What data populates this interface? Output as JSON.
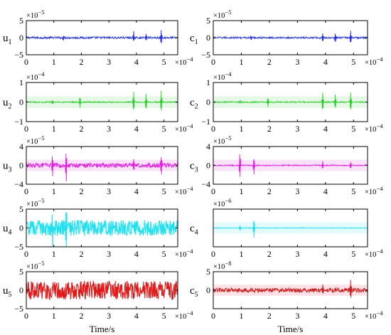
{
  "chart_data": [
    {
      "type": "line",
      "panel": "u1",
      "ylabel": {
        "base": "u",
        "sub": "1"
      },
      "color": "#1f2fd8",
      "xlim": [
        0,
        5.5
      ],
      "xticks": [
        0,
        1,
        2,
        3,
        4,
        5
      ],
      "x_exponent_label": "×10",
      "x_exponent_power": "−4",
      "ylim": [
        -5,
        5
      ],
      "yticks": [
        -5,
        0,
        5
      ],
      "y_exponent_label": "×10",
      "y_exponent_power": "−5",
      "noise": 0.06,
      "spikes": [
        {
          "x": 1.35,
          "a": 0.15
        },
        {
          "x": 3.9,
          "a": 0.35
        },
        {
          "x": 4.35,
          "a": 0.3
        },
        {
          "x": 4.9,
          "a": 0.45
        }
      ],
      "shade": false
    },
    {
      "type": "line",
      "panel": "c1",
      "ylabel": {
        "base": "c",
        "sub": "1"
      },
      "color": "#1f2fd8",
      "xlim": [
        0,
        5.5
      ],
      "xticks": [
        0,
        1,
        2,
        3,
        4,
        5
      ],
      "x_exponent_label": "×10",
      "x_exponent_power": "−4",
      "ylim": [
        -5,
        5
      ],
      "yticks": [
        -5,
        0,
        5
      ],
      "y_exponent_label": "×10",
      "y_exponent_power": "−5",
      "noise": 0.05,
      "spikes": [
        {
          "x": 1.35,
          "a": 0.12
        },
        {
          "x": 3.9,
          "a": 0.3
        },
        {
          "x": 4.35,
          "a": 0.28
        },
        {
          "x": 4.9,
          "a": 0.4
        }
      ],
      "shade": false
    },
    {
      "type": "line",
      "panel": "u2",
      "ylabel": {
        "base": "u",
        "sub": "2"
      },
      "color": "#2ecc2e",
      "xlim": [
        0,
        5.5
      ],
      "xticks": [
        0,
        1,
        2,
        3,
        4,
        5
      ],
      "x_exponent_label": "×10",
      "x_exponent_power": "−4",
      "ylim": [
        -1,
        1
      ],
      "yticks": [
        -1,
        0,
        1
      ],
      "y_exponent_label": "×10",
      "y_exponent_power": "−4",
      "noise": 0.03,
      "spikes": [
        {
          "x": 0.95,
          "a": 0.08
        },
        {
          "x": 1.95,
          "a": 0.28
        },
        {
          "x": 3.9,
          "a": 0.55
        },
        {
          "x": 4.35,
          "a": 0.45
        },
        {
          "x": 4.9,
          "a": 0.6
        }
      ],
      "shade": true
    },
    {
      "type": "line",
      "panel": "c2",
      "ylabel": {
        "base": "c",
        "sub": "2"
      },
      "color": "#2ecc2e",
      "xlim": [
        0,
        5.5
      ],
      "xticks": [
        0,
        1,
        2,
        3,
        4,
        5
      ],
      "x_exponent_label": "×10",
      "x_exponent_power": "−4",
      "ylim": [
        -1,
        1
      ],
      "yticks": [
        -1,
        0,
        1
      ],
      "y_exponent_label": "×10",
      "y_exponent_power": "−4",
      "noise": 0.03,
      "spikes": [
        {
          "x": 0.95,
          "a": 0.08
        },
        {
          "x": 1.95,
          "a": 0.25
        },
        {
          "x": 3.9,
          "a": 0.5
        },
        {
          "x": 4.35,
          "a": 0.4
        },
        {
          "x": 4.9,
          "a": 0.55
        }
      ],
      "shade": true
    },
    {
      "type": "line",
      "panel": "u3",
      "ylabel": {
        "base": "u",
        "sub": "3"
      },
      "color": "#e020e0",
      "xlim": [
        0,
        5.5
      ],
      "xticks": [
        0,
        1,
        2,
        3,
        4,
        5
      ],
      "x_exponent_label": "×10",
      "x_exponent_power": "−4",
      "ylim": [
        -4,
        4
      ],
      "yticks": [
        -4,
        0,
        4
      ],
      "y_exponent_label": "×10",
      "y_exponent_power": "−5",
      "noise": 0.12,
      "spikes": [
        {
          "x": 0.95,
          "a": 0.7
        },
        {
          "x": 1.45,
          "a": 0.85
        },
        {
          "x": 3.9,
          "a": 0.45
        },
        {
          "x": 4.9,
          "a": 0.55
        }
      ],
      "shade": true
    },
    {
      "type": "line",
      "panel": "c3",
      "ylabel": {
        "base": "c",
        "sub": "3"
      },
      "color": "#e020e0",
      "xlim": [
        0,
        5.5
      ],
      "xticks": [
        0,
        1,
        2,
        3,
        4,
        5
      ],
      "x_exponent_label": "×10",
      "x_exponent_power": "−4",
      "ylim": [
        -4,
        4
      ],
      "yticks": [
        -4,
        0,
        4
      ],
      "y_exponent_label": "×10",
      "y_exponent_power": "−5",
      "noise": 0.03,
      "spikes": [
        {
          "x": 0.95,
          "a": 0.75
        },
        {
          "x": 1.45,
          "a": 0.5
        },
        {
          "x": 3.9,
          "a": 0.25
        },
        {
          "x": 4.9,
          "a": 0.2
        }
      ],
      "shade": true
    },
    {
      "type": "line",
      "panel": "u4",
      "ylabel": {
        "base": "u",
        "sub": "4"
      },
      "color": "#22e0f0",
      "xlim": [
        0,
        5.5
      ],
      "xticks": [
        0,
        1,
        2,
        3,
        4,
        5
      ],
      "x_exponent_label": "×10",
      "x_exponent_power": "−4",
      "ylim": [
        -5,
        5
      ],
      "yticks": [
        -5,
        0,
        5
      ],
      "y_exponent_label": "×10",
      "y_exponent_power": "−5",
      "noise": 0.42,
      "spikes": [
        {
          "x": 0.95,
          "a": 0.95
        },
        {
          "x": 1.45,
          "a": 0.95
        }
      ],
      "shade": true
    },
    {
      "type": "line",
      "panel": "c4",
      "ylabel": {
        "base": "c",
        "sub": "4"
      },
      "color": "#22e0f0",
      "xlim": [
        0,
        5.5
      ],
      "xticks": [
        0,
        1,
        2,
        3,
        4,
        5
      ],
      "x_exponent_label": "×10",
      "x_exponent_power": "−4",
      "ylim": [
        -5,
        5
      ],
      "yticks": [],
      "y_exponent_label": "×10",
      "y_exponent_power": "−6",
      "noise": 0.02,
      "spikes": [
        {
          "x": 0.95,
          "a": 0.15
        },
        {
          "x": 1.45,
          "a": 0.55
        }
      ],
      "shade": true
    },
    {
      "type": "line",
      "panel": "u5",
      "ylabel": {
        "base": "u",
        "sub": "5"
      },
      "color": "#e01818",
      "xlim": [
        0,
        5.5
      ],
      "xticks": [
        0,
        1,
        2,
        3,
        4,
        5
      ],
      "x_exponent_label": "×10",
      "x_exponent_power": "−4",
      "ylim": [
        -5,
        5
      ],
      "yticks": [
        -5,
        0,
        5
      ],
      "y_exponent_label": "×10",
      "y_exponent_power": "−5",
      "noise": 0.5,
      "spikes": [],
      "shade": false,
      "xlabel": "Time/s"
    },
    {
      "type": "line",
      "panel": "c5",
      "ylabel": {
        "base": "c",
        "sub": "5"
      },
      "color": "#c81e1e",
      "xlim": [
        0,
        5.5
      ],
      "xticks": [
        0,
        1,
        2,
        3,
        4,
        5
      ],
      "x_exponent_label": "×10",
      "x_exponent_power": "−4",
      "ylim": [
        -5,
        5
      ],
      "yticks": [
        0,
        5
      ],
      "y_exponent_label": "×10",
      "y_exponent_power": "−8",
      "noise": 0.12,
      "spikes": [
        {
          "x": 3.9,
          "a": 0.3
        },
        {
          "x": 4.9,
          "a": 0.5
        }
      ],
      "shade": true,
      "shade_color": "#ffd6dc",
      "xlabel": "Time/s"
    }
  ]
}
